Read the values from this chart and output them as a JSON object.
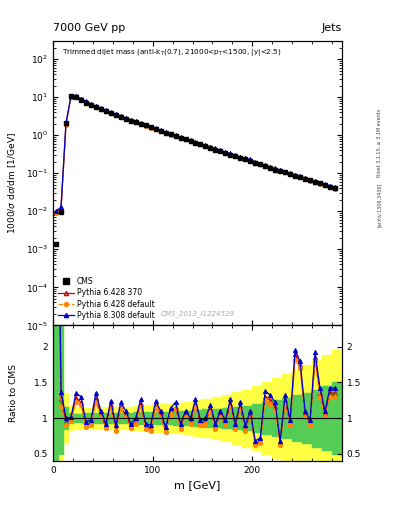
{
  "title_top": "7000 GeV pp",
  "title_right": "Jets",
  "xlabel": "m [GeV]",
  "ylabel_main": "1000/σ dσ/dm [1/GeV]",
  "ylabel_ratio": "Ratio to CMS",
  "watermark": "CMS_2013_I1224539",
  "right_label": "Rivet 3.1.10, ≥ 3.1M events",
  "arxiv_label": "[arXiv:1306.3436]",
  "cms_data_x": [
    3,
    8,
    13,
    18,
    23,
    28,
    33,
    38,
    43,
    48,
    53,
    58,
    63,
    68,
    73,
    78,
    83,
    88,
    93,
    98,
    103,
    108,
    113,
    118,
    123,
    128,
    133,
    138,
    143,
    148,
    153,
    158,
    163,
    168,
    173,
    178,
    183,
    188,
    193,
    198,
    203,
    208,
    213,
    218,
    223,
    228,
    233,
    238,
    243,
    248,
    253,
    258,
    263,
    268,
    273,
    278,
    283
  ],
  "cms_data_y": [
    0.0014,
    0.0095,
    2.1,
    10.5,
    10.2,
    8.5,
    7.2,
    6.2,
    5.4,
    4.8,
    4.2,
    3.8,
    3.4,
    3.0,
    2.7,
    2.4,
    2.2,
    2.0,
    1.8,
    1.6,
    1.45,
    1.3,
    1.15,
    1.05,
    0.95,
    0.85,
    0.77,
    0.7,
    0.63,
    0.57,
    0.52,
    0.47,
    0.42,
    0.38,
    0.34,
    0.31,
    0.28,
    0.25,
    0.23,
    0.21,
    0.19,
    0.17,
    0.155,
    0.14,
    0.125,
    0.115,
    0.105,
    0.095,
    0.085,
    0.078,
    0.071,
    0.065,
    0.059,
    0.054,
    0.049,
    0.044,
    0.04
  ],
  "mc_x": [
    3,
    8,
    13,
    18,
    23,
    28,
    33,
    38,
    43,
    48,
    53,
    58,
    63,
    68,
    73,
    78,
    83,
    88,
    93,
    98,
    103,
    108,
    113,
    118,
    123,
    128,
    133,
    138,
    143,
    148,
    153,
    158,
    163,
    168,
    173,
    178,
    183,
    188,
    193,
    198,
    203,
    208,
    213,
    218,
    223,
    228,
    233,
    238,
    243,
    248,
    253,
    258,
    263,
    268,
    273,
    278,
    283
  ],
  "pythia628_370_y": [
    0.0095,
    0.012,
    2.0,
    10.3,
    10.5,
    9.0,
    7.6,
    6.5,
    5.7,
    5.0,
    4.4,
    3.9,
    3.5,
    3.1,
    2.75,
    2.45,
    2.2,
    2.0,
    1.8,
    1.6,
    1.45,
    1.3,
    1.15,
    1.05,
    0.97,
    0.86,
    0.78,
    0.71,
    0.64,
    0.58,
    0.52,
    0.48,
    0.43,
    0.39,
    0.35,
    0.32,
    0.29,
    0.26,
    0.24,
    0.22,
    0.19,
    0.17,
    0.158,
    0.143,
    0.13,
    0.118,
    0.107,
    0.098,
    0.089,
    0.081,
    0.073,
    0.066,
    0.06,
    0.054,
    0.05,
    0.045,
    0.04
  ],
  "pythia628_def_y": [
    0.009,
    0.011,
    1.9,
    10.2,
    10.4,
    8.9,
    7.5,
    6.4,
    5.6,
    4.9,
    4.3,
    3.85,
    3.45,
    3.05,
    2.72,
    2.42,
    2.18,
    1.98,
    1.78,
    1.58,
    1.44,
    1.28,
    1.14,
    1.04,
    0.96,
    0.85,
    0.77,
    0.7,
    0.63,
    0.57,
    0.52,
    0.47,
    0.42,
    0.38,
    0.34,
    0.31,
    0.28,
    0.25,
    0.23,
    0.21,
    0.19,
    0.17,
    0.155,
    0.14,
    0.125,
    0.115,
    0.105,
    0.095,
    0.086,
    0.078,
    0.071,
    0.064,
    0.058,
    0.053,
    0.048,
    0.043,
    0.039
  ],
  "pythia8308_def_y": [
    0.01,
    0.013,
    2.1,
    10.6,
    10.6,
    9.1,
    7.7,
    6.6,
    5.8,
    5.1,
    4.5,
    4.0,
    3.6,
    3.2,
    2.85,
    2.55,
    2.3,
    2.08,
    1.87,
    1.67,
    1.52,
    1.36,
    1.21,
    1.1,
    1.0,
    0.89,
    0.81,
    0.73,
    0.66,
    0.6,
    0.54,
    0.5,
    0.45,
    0.4,
    0.36,
    0.33,
    0.3,
    0.27,
    0.25,
    0.23,
    0.2,
    0.18,
    0.163,
    0.147,
    0.134,
    0.121,
    0.11,
    0.1,
    0.091,
    0.083,
    0.075,
    0.068,
    0.062,
    0.057,
    0.052,
    0.047,
    0.043
  ],
  "ratio628_370_y": [
    6.8,
    1.26,
    0.95,
    0.98,
    1.28,
    1.22,
    0.9,
    0.92,
    1.28,
    1.05,
    0.88,
    1.18,
    0.85,
    1.15,
    1.05,
    0.88,
    0.95,
    1.2,
    0.88,
    0.85,
    1.18,
    1.05,
    0.82,
    1.1,
    1.15,
    0.88,
    1.05,
    0.95,
    1.2,
    0.92,
    0.95,
    1.12,
    0.88,
    1.05,
    0.92,
    1.2,
    0.88,
    1.15,
    0.85,
    1.05,
    0.65,
    0.68,
    1.3,
    1.25,
    1.15,
    0.65,
    1.25,
    0.92,
    1.9,
    1.75,
    1.05,
    0.92,
    1.85,
    1.35,
    1.05,
    1.35,
    1.35
  ],
  "ratio628_def_y": [
    6.4,
    1.16,
    0.9,
    0.96,
    1.22,
    1.18,
    0.88,
    0.9,
    1.22,
    1.02,
    0.86,
    1.14,
    0.82,
    1.12,
    1.02,
    0.86,
    0.92,
    1.16,
    0.85,
    0.82,
    1.14,
    1.02,
    0.8,
    1.06,
    1.12,
    0.85,
    1.02,
    0.92,
    1.16,
    0.9,
    0.92,
    1.08,
    0.85,
    1.02,
    0.9,
    1.16,
    0.85,
    1.12,
    0.82,
    1.02,
    0.62,
    0.65,
    1.25,
    1.2,
    1.1,
    0.62,
    1.2,
    0.9,
    1.82,
    1.7,
    1.02,
    0.9,
    1.8,
    1.3,
    1.02,
    1.3,
    1.3
  ],
  "ratio8308_def_y": [
    7.1,
    1.37,
    1.0,
    1.01,
    1.35,
    1.3,
    0.95,
    0.97,
    1.35,
    1.1,
    0.92,
    1.24,
    0.9,
    1.22,
    1.1,
    0.92,
    1.0,
    1.26,
    0.92,
    0.9,
    1.24,
    1.1,
    0.87,
    1.14,
    1.22,
    0.92,
    1.1,
    1.0,
    1.26,
    0.97,
    1.0,
    1.18,
    0.92,
    1.1,
    0.97,
    1.26,
    0.92,
    1.22,
    0.9,
    1.1,
    0.68,
    0.72,
    1.38,
    1.32,
    1.22,
    0.68,
    1.32,
    0.97,
    1.95,
    1.8,
    1.1,
    0.97,
    1.92,
    1.42,
    1.1,
    1.42,
    1.42
  ],
  "green_band_x": [
    0,
    5,
    10,
    15,
    20,
    25,
    30,
    40,
    50,
    60,
    70,
    80,
    90,
    100,
    110,
    120,
    130,
    140,
    150,
    160,
    170,
    180,
    190,
    200,
    210,
    220,
    230,
    240,
    250,
    260,
    270,
    280,
    290
  ],
  "green_band_lo": [
    0.4,
    0.5,
    0.85,
    0.93,
    0.94,
    0.94,
    0.93,
    0.93,
    0.93,
    0.93,
    0.93,
    0.92,
    0.92,
    0.91,
    0.91,
    0.9,
    0.9,
    0.89,
    0.88,
    0.87,
    0.86,
    0.85,
    0.83,
    0.81,
    0.78,
    0.75,
    0.72,
    0.68,
    0.65,
    0.6,
    0.55,
    0.5,
    0.48
  ],
  "green_band_hi": [
    2.6,
    2.4,
    1.15,
    1.07,
    1.06,
    1.06,
    1.07,
    1.07,
    1.07,
    1.07,
    1.07,
    1.08,
    1.08,
    1.09,
    1.09,
    1.1,
    1.1,
    1.11,
    1.12,
    1.13,
    1.14,
    1.15,
    1.17,
    1.19,
    1.22,
    1.25,
    1.28,
    1.32,
    1.35,
    1.4,
    1.45,
    1.5,
    1.52
  ],
  "yellow_band_x": [
    0,
    5,
    10,
    15,
    20,
    25,
    30,
    40,
    50,
    60,
    70,
    80,
    90,
    100,
    110,
    120,
    130,
    140,
    150,
    160,
    170,
    180,
    190,
    200,
    210,
    220,
    230,
    240,
    250,
    260,
    270,
    280,
    290
  ],
  "yellow_band_lo": [
    0.2,
    0.3,
    0.65,
    0.83,
    0.85,
    0.85,
    0.86,
    0.85,
    0.84,
    0.84,
    0.84,
    0.83,
    0.82,
    0.81,
    0.8,
    0.79,
    0.77,
    0.75,
    0.73,
    0.71,
    0.68,
    0.64,
    0.6,
    0.55,
    0.5,
    0.44,
    0.38,
    0.32,
    0.25,
    0.2,
    0.15,
    0.1,
    0.08
  ],
  "yellow_band_hi": [
    2.9,
    2.7,
    1.35,
    1.17,
    1.15,
    1.15,
    1.14,
    1.15,
    1.16,
    1.16,
    1.16,
    1.17,
    1.18,
    1.19,
    1.2,
    1.21,
    1.23,
    1.25,
    1.27,
    1.29,
    1.32,
    1.36,
    1.4,
    1.45,
    1.5,
    1.56,
    1.62,
    1.68,
    1.75,
    1.82,
    1.88,
    1.95,
    2.0
  ],
  "cms_color": "#000000",
  "p628_370_color": "#cc0000",
  "p628_def_color": "#ff8800",
  "p8308_def_color": "#0000cc",
  "xlim": [
    0,
    290
  ],
  "ratio_ylim": [
    0.4,
    2.3
  ],
  "ratio_yticks": [
    0.5,
    1.0,
    1.5,
    2.0
  ],
  "ratio_yticklabels": [
    "0.5",
    "1",
    "1.5",
    "2"
  ]
}
